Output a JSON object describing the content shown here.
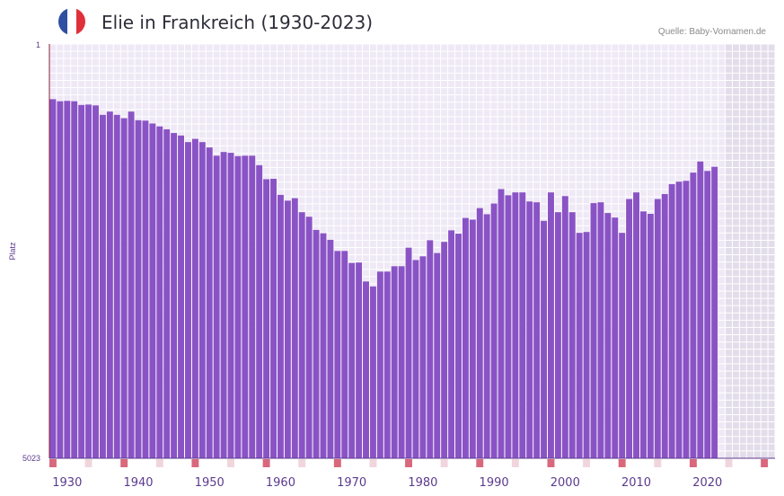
{
  "title": "Elie in Frankreich (1930-2023)",
  "source": "Quelle: Baby-Vornamen.de",
  "colors": {
    "bar": "#8a53c5",
    "plot_bg": "#efe9f6",
    "future_bg": "#e3dcea",
    "grid": "#ffffff",
    "decade_marker": "#d9687c",
    "year_marker": "#f0d6dc",
    "flag_blue": "#2f4fa2",
    "flag_white": "#ffffff",
    "flag_red": "#e0303a"
  },
  "chart_data": {
    "type": "bar",
    "title": "Elie in Frankreich (1930-2023)",
    "xlabel": "",
    "ylabel": "Platz",
    "y_inverted": true,
    "ylim": [
      1,
      5023
    ],
    "ytick_labels": [
      "1",
      "5023"
    ],
    "xlim": [
      1928,
      2029
    ],
    "xtick_labels": [
      "1930",
      "1940",
      "1950",
      "1960",
      "1970",
      "1980",
      "1990",
      "2000",
      "2010",
      "2020"
    ],
    "xticks": [
      1930,
      1940,
      1950,
      1960,
      1970,
      1980,
      1990,
      2000,
      2010,
      2020
    ],
    "x": [
      1928,
      1929,
      1930,
      1931,
      1932,
      1933,
      1934,
      1935,
      1936,
      1937,
      1938,
      1939,
      1940,
      1941,
      1942,
      1943,
      1944,
      1945,
      1946,
      1947,
      1948,
      1949,
      1950,
      1951,
      1952,
      1953,
      1954,
      1955,
      1956,
      1957,
      1958,
      1959,
      1960,
      1961,
      1962,
      1963,
      1964,
      1965,
      1966,
      1967,
      1968,
      1969,
      1970,
      1971,
      1972,
      1973,
      1974,
      1975,
      1976,
      1977,
      1978,
      1979,
      1980,
      1981,
      1982,
      1983,
      1984,
      1985,
      1986,
      1987,
      1988,
      1989,
      1990,
      1991,
      1992,
      1993,
      1994,
      1995,
      1996,
      1997,
      1998,
      1999,
      2000,
      2001,
      2002,
      2003,
      2004,
      2005,
      2006,
      2007,
      2008,
      2009,
      2010,
      2011,
      2012,
      2013,
      2014,
      2015,
      2016,
      2017,
      2018,
      2019,
      2020,
      2021,
      2022
    ],
    "values": [
      670,
      695,
      690,
      695,
      740,
      735,
      745,
      860,
      820,
      860,
      900,
      820,
      925,
      930,
      965,
      1000,
      1035,
      1080,
      1110,
      1190,
      1150,
      1190,
      1255,
      1355,
      1310,
      1320,
      1360,
      1355,
      1355,
      1470,
      1640,
      1635,
      1830,
      1900,
      1870,
      2040,
      2095,
      2255,
      2295,
      2375,
      2510,
      2510,
      2655,
      2650,
      2880,
      2940,
      2760,
      2760,
      2695,
      2695,
      2470,
      2620,
      2575,
      2380,
      2535,
      2400,
      2260,
      2300,
      2110,
      2130,
      1990,
      2065,
      1935,
      1760,
      1835,
      1800,
      1800,
      1910,
      1920,
      2145,
      1800,
      2040,
      1845,
      2040,
      2290,
      2280,
      1930,
      1920,
      2050,
      2105,
      2290,
      1880,
      1800,
      2030,
      2060,
      1880,
      1820,
      1700,
      1670,
      1660,
      1560,
      1425,
      1540,
      1490,
      5023
    ],
    "legend": []
  }
}
